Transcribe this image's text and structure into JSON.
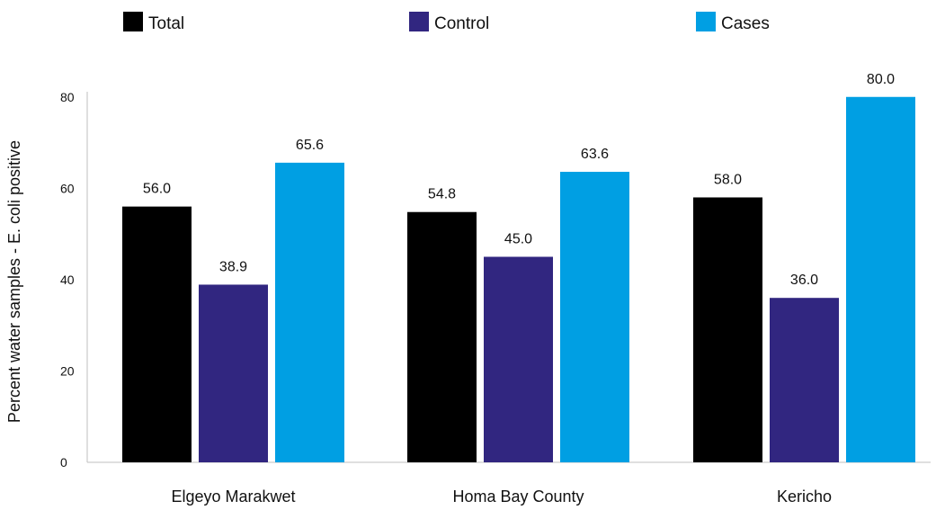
{
  "chart_data": {
    "type": "bar",
    "categories": [
      "Elgeyo Marakwet",
      "Homa Bay County",
      "Kericho"
    ],
    "series": [
      {
        "name": "Total",
        "color": "#000000",
        "values": [
          56.0,
          54.8,
          58.0
        ],
        "labels": [
          "56.0",
          "54.8",
          "58.0"
        ]
      },
      {
        "name": "Control",
        "color": "#312680",
        "values": [
          38.9,
          45.0,
          36.0
        ],
        "labels": [
          "38.9",
          "45.0",
          "36.0"
        ]
      },
      {
        "name": "Cases",
        "color": "#009fe3",
        "values": [
          65.6,
          63.6,
          80.0
        ],
        "labels": [
          "65.6",
          "63.6",
          "80.0"
        ]
      }
    ],
    "ylabel": "Percent water samples - E. coli positive",
    "ylim": [
      0,
      80
    ],
    "yticks": [
      0,
      20,
      40,
      60,
      80
    ],
    "grid": false,
    "legend_position": "top"
  }
}
